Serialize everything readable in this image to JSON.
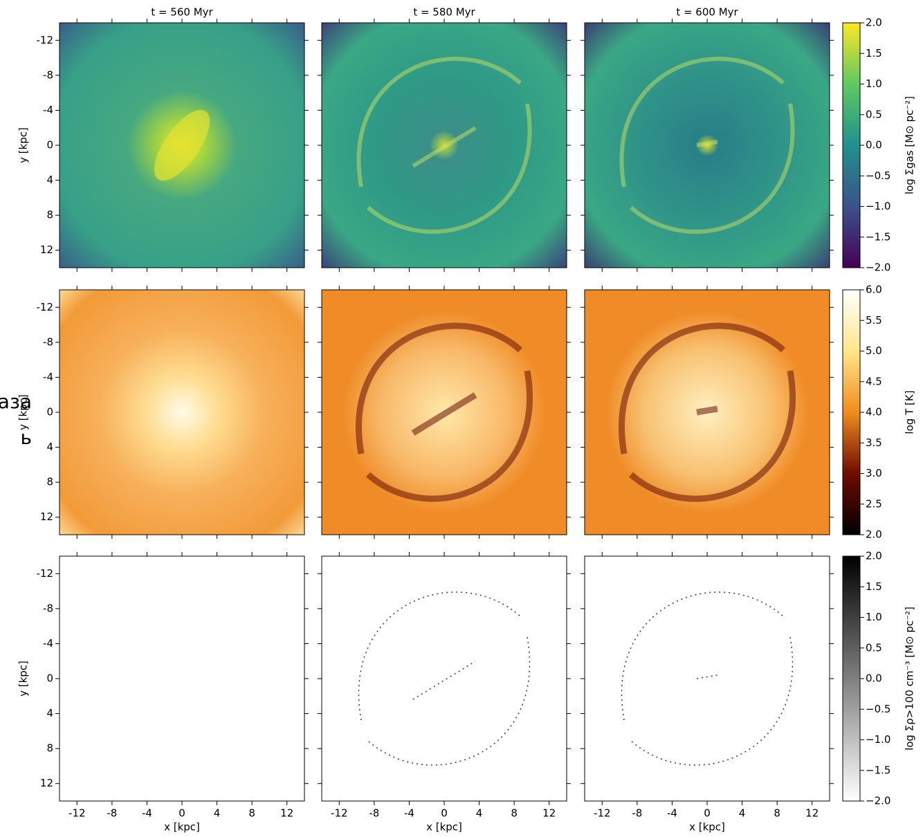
{
  "figure": {
    "columns": [
      {
        "title": "t = 560 Myr"
      },
      {
        "title": "t = 580 Myr"
      },
      {
        "title": "t = 600 Myr"
      }
    ],
    "x_label": "x [kpc]",
    "y_label": "y [kpc]",
    "xlim": [
      -14,
      14
    ],
    "xticks": [
      -12,
      -8,
      -4,
      0,
      4,
      8,
      12
    ],
    "ylim": [
      -14,
      14
    ],
    "yticks": [
      -12,
      -8,
      -4,
      0,
      4,
      8,
      12
    ],
    "rows": [
      {
        "colorbar": {
          "label": "log Σgas [M⊙ pc⁻²]",
          "colormap": "viridis",
          "lim": [
            -2,
            2
          ],
          "ticks": [
            {
              "value": 2,
              "label": "2.0"
            },
            {
              "value": 1.5,
              "label": "1.5"
            },
            {
              "value": 1,
              "label": "1.0"
            },
            {
              "value": 0.5,
              "label": "0.5"
            },
            {
              "value": 0,
              "label": "0.0"
            },
            {
              "value": -0.5,
              "label": "−0.5"
            },
            {
              "value": -1,
              "label": "−1.0"
            },
            {
              "value": -1.5,
              "label": "−1.5"
            },
            {
              "value": -2,
              "label": "−2.0"
            }
          ]
        }
      },
      {
        "colorbar": {
          "label": "log T [K]",
          "colormap": "afmhot",
          "lim": [
            2,
            6
          ],
          "ticks": [
            {
              "value": 6,
              "label": "6.0"
            },
            {
              "value": 5.5,
              "label": "5.5"
            },
            {
              "value": 5,
              "label": "5.0"
            },
            {
              "value": 4.5,
              "label": "4.5"
            },
            {
              "value": 4,
              "label": "4.0"
            },
            {
              "value": 3.5,
              "label": "3.5"
            },
            {
              "value": 3,
              "label": "3.0"
            },
            {
              "value": 2.5,
              "label": "2.5"
            },
            {
              "value": 2,
              "label": "2.0"
            }
          ]
        }
      },
      {
        "colorbar": {
          "label": "log Σρ>100 cm⁻³ [M⊙ pc⁻²]",
          "colormap": "gray_r",
          "lim": [
            -2,
            2
          ],
          "ticks": [
            {
              "value": 2,
              "label": "2.0"
            },
            {
              "value": 1.5,
              "label": "1.5"
            },
            {
              "value": 1,
              "label": "1.0"
            },
            {
              "value": 0.5,
              "label": "0.5"
            },
            {
              "value": 0,
              "label": "0.0"
            },
            {
              "value": -0.5,
              "label": "−0.5"
            },
            {
              "value": -1,
              "label": "−1.0"
            },
            {
              "value": -1.5,
              "label": "−1.5"
            },
            {
              "value": -2,
              "label": "−2.0"
            }
          ]
        }
      }
    ],
    "overlay_text": [
      "аза",
      "ь"
    ]
  }
}
